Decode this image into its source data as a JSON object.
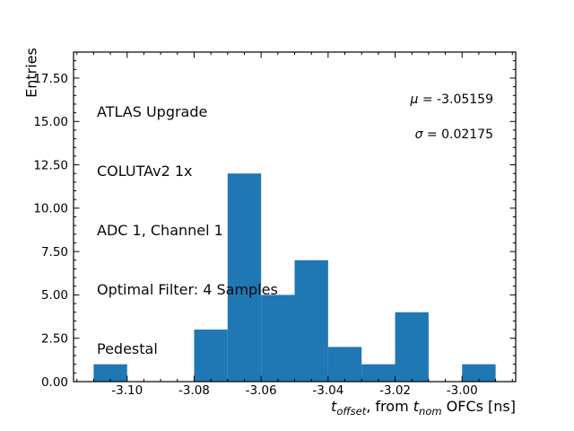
{
  "chart_data": {
    "type": "bar",
    "subtype": "histogram",
    "title": "",
    "xlabel": "t_offset, from t_nom OFCs [ns]",
    "ylabel": "Entries",
    "bar_color": "#1f77b4",
    "bin_edges": [
      -3.11,
      -3.1,
      -3.09,
      -3.08,
      -3.07,
      -3.06,
      -3.05,
      -3.04,
      -3.03,
      -3.02,
      -3.01,
      -3.0,
      -2.99
    ],
    "counts": [
      1,
      0,
      0,
      3,
      12,
      5,
      7,
      2,
      1,
      4,
      0,
      1
    ],
    "total_entries": 36,
    "xlim": [
      -3.116,
      -2.984
    ],
    "ylim": [
      0,
      19
    ],
    "xticks": [
      -3.1,
      -3.08,
      -3.06,
      -3.04,
      -3.02,
      -3.0
    ],
    "xtick_labels": [
      "-3.10",
      "-3.08",
      "-3.06",
      "-3.04",
      "-3.02",
      "-3.00"
    ],
    "yticks": [
      0,
      2.5,
      5,
      7.5,
      10,
      12.5,
      15,
      17.5
    ],
    "ytick_labels": [
      "0.00",
      "2.50",
      "5.00",
      "7.50",
      "10.00",
      "12.50",
      "15.00",
      "17.50"
    ],
    "x_minor_step": 0.005,
    "y_minor_step": 0.5,
    "grid": false,
    "legend_position": "none",
    "stats": {
      "mu": -3.05159,
      "sigma": 0.02175
    },
    "annotation_lines": [
      "ATLAS Upgrade",
      "COLUTAv2 1x",
      "ADC 1, Channel 1",
      "Optimal Filter: 4 Samples",
      "Pedestal"
    ],
    "stats_display": {
      "mu_symbol": "μ",
      "mu_rest": " = -3.05159",
      "sigma_symbol": "σ",
      "sigma_rest": " = 0.02175"
    },
    "xlabel_parts": {
      "t1": "t",
      "sub1": "offset",
      "mid": ", from ",
      "t2": "t",
      "sub2": "nom",
      "tail": " OFCs [ns]"
    }
  }
}
